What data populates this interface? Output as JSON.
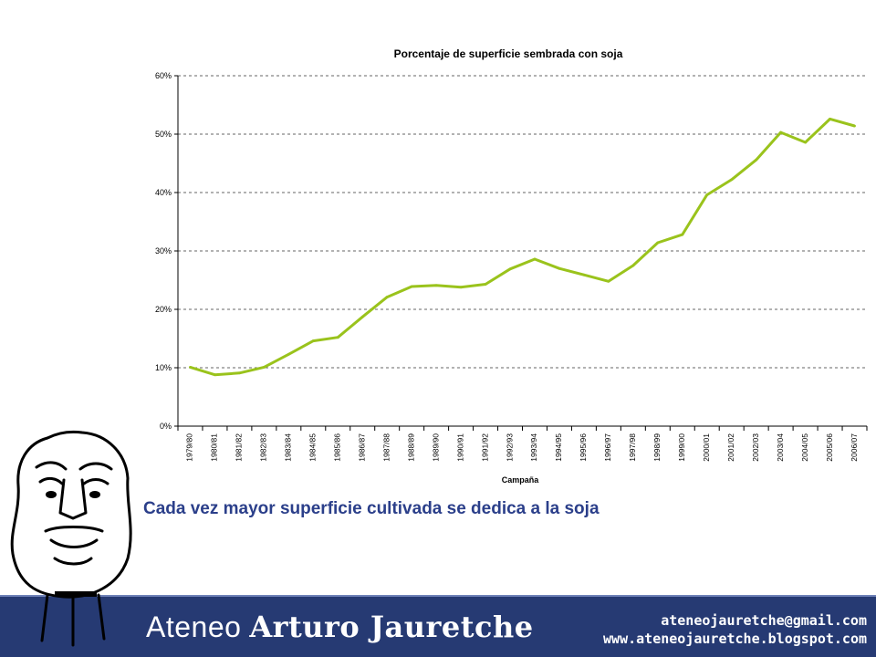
{
  "caption": "Cada vez mayor superficie cultivada se dedica a la soja",
  "footer": {
    "brand_light": "Ateneo",
    "brand_bold": "Arturo Jauretche",
    "email": "ateneojauretche@gmail.com",
    "website": "www.ateneojauretche.blogspot.com"
  },
  "colors": {
    "line": "#9ac31c",
    "footer": "#263a73",
    "caption": "#2b3f8a"
  },
  "chart_data": {
    "type": "line",
    "title": "Porcentaje de superficie sembrada con soja",
    "xlabel": "Campaña",
    "ylabel": "",
    "ylim": [
      0,
      60
    ],
    "yticks": [
      0,
      10,
      20,
      30,
      40,
      50,
      60
    ],
    "ytick_labels": [
      "0%",
      "10%",
      "20%",
      "30%",
      "40%",
      "50%",
      "60%"
    ],
    "grid": true,
    "legend": "none",
    "categories": [
      "1979/80",
      "1980/81",
      "1981/82",
      "1982/83",
      "1983/84",
      "1984/85",
      "1985/86",
      "1986/87",
      "1987/88",
      "1988/89",
      "1989/90",
      "1990/91",
      "1991/92",
      "1992/93",
      "1993/94",
      "1994/95",
      "1995/96",
      "1996/97",
      "1997/98",
      "1998/99",
      "1999/00",
      "2000/01",
      "2001/02",
      "2002/03",
      "2003/04",
      "2004/05",
      "2005/06",
      "2006/07"
    ],
    "series": [
      {
        "values": [
          10.1,
          8.8,
          9.1,
          10.1,
          12.3,
          14.6,
          15.2,
          18.7,
          22.1,
          23.9,
          24.1,
          23.8,
          24.3,
          26.9,
          28.6,
          27.0,
          25.9,
          24.8,
          27.5,
          31.4,
          32.8,
          39.6,
          42.2,
          45.6,
          50.3,
          48.6,
          52.6,
          51.4
        ]
      }
    ]
  }
}
